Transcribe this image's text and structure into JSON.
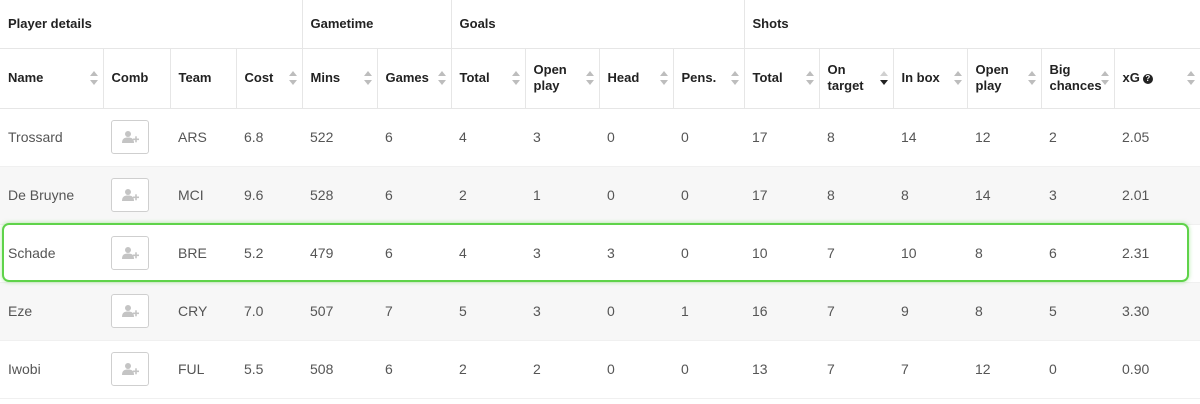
{
  "groups": {
    "player_details": "Player details",
    "gametime": "Gametime",
    "goals": "Goals",
    "shots": "Shots"
  },
  "columns": {
    "name": "Name",
    "comb": "Comb",
    "team": "Team",
    "cost": "Cost",
    "mins": "Mins",
    "games": "Games",
    "goals_total": "Total",
    "goals_open_play_1": "Open",
    "goals_open_play_2": "play",
    "head": "Head",
    "pens": "Pens.",
    "shots_total": "Total",
    "on_target_1": "On",
    "on_target_2": "target",
    "in_box": "In box",
    "shots_open_play_1": "Open",
    "shots_open_play_2": "play",
    "big_chances_1": "Big",
    "big_chances_2": "chances",
    "xg": "xG",
    "xg_help": "?"
  },
  "icons": {
    "comb_button": "add-player-icon",
    "sort": "sort-arrows-icon",
    "help": "question-circle-icon"
  },
  "colors": {
    "highlight": "#5fd34a",
    "sort_active": "#222222"
  },
  "rows": [
    {
      "name": "Trossard",
      "team": "ARS",
      "cost": "6.8",
      "mins": "522",
      "games": "6",
      "goals_total": "4",
      "goals_open_play": "3",
      "head": "0",
      "pens": "0",
      "shots_total": "17",
      "on_target": "8",
      "in_box": "14",
      "shots_open_play": "12",
      "big_chances": "2",
      "xg": "2.05"
    },
    {
      "name": "De Bruyne",
      "team": "MCI",
      "cost": "9.6",
      "mins": "528",
      "games": "6",
      "goals_total": "2",
      "goals_open_play": "1",
      "head": "0",
      "pens": "0",
      "shots_total": "17",
      "on_target": "8",
      "in_box": "8",
      "shots_open_play": "14",
      "big_chances": "3",
      "xg": "2.01"
    },
    {
      "name": "Schade",
      "team": "BRE",
      "cost": "5.2",
      "mins": "479",
      "games": "6",
      "goals_total": "4",
      "goals_open_play": "3",
      "head": "3",
      "pens": "0",
      "shots_total": "10",
      "on_target": "7",
      "in_box": "10",
      "shots_open_play": "8",
      "big_chances": "6",
      "xg": "2.31"
    },
    {
      "name": "Eze",
      "team": "CRY",
      "cost": "7.0",
      "mins": "507",
      "games": "7",
      "goals_total": "5",
      "goals_open_play": "3",
      "head": "0",
      "pens": "1",
      "shots_total": "16",
      "on_target": "7",
      "in_box": "9",
      "shots_open_play": "8",
      "big_chances": "5",
      "xg": "3.30"
    },
    {
      "name": "Iwobi",
      "team": "FUL",
      "cost": "5.5",
      "mins": "508",
      "games": "6",
      "goals_total": "2",
      "goals_open_play": "2",
      "head": "0",
      "pens": "0",
      "shots_total": "13",
      "on_target": "7",
      "in_box": "7",
      "shots_open_play": "12",
      "big_chances": "0",
      "xg": "0.90"
    }
  ]
}
